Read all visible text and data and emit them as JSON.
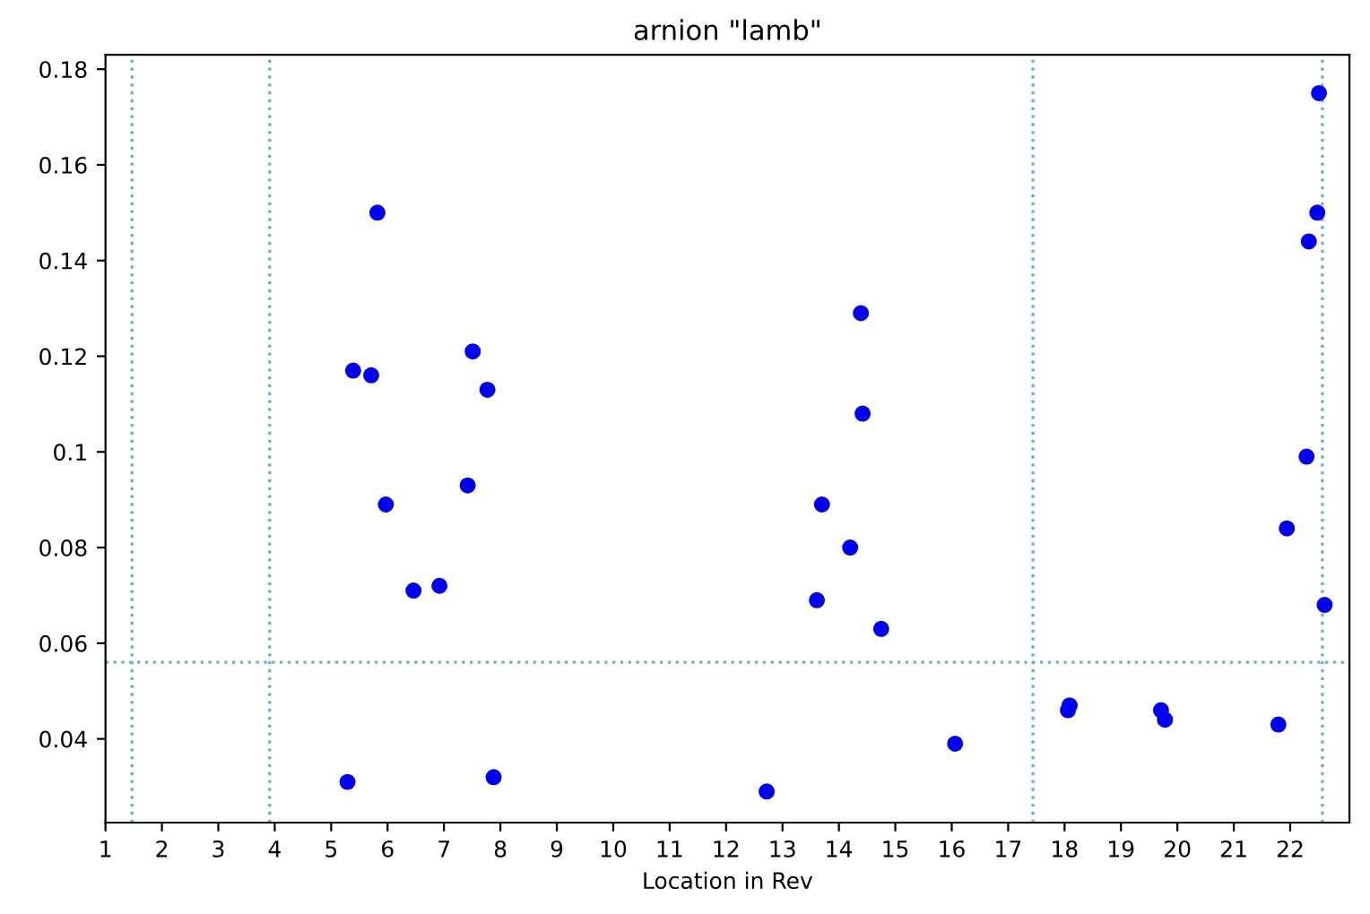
{
  "chart_data": {
    "type": "scatter",
    "title": "arnion \"lamb\"",
    "xlabel": "Location in Rev",
    "x": [
      5.82,
      5.39,
      5.71,
      5.97,
      6.46,
      6.92,
      7.51,
      7.77,
      7.42,
      5.29,
      7.88,
      14.39,
      14.42,
      13.7,
      14.2,
      13.61,
      14.75,
      16.06,
      12.72,
      18.09,
      18.06,
      19.71,
      19.78,
      21.79,
      22.51,
      22.48,
      22.33,
      22.29,
      21.94,
      22.61
    ],
    "series": [
      {
        "color": "#0000ee",
        "values": [
          0.15,
          0.117,
          0.116,
          0.089,
          0.071,
          0.072,
          0.121,
          0.113,
          0.093,
          0.031,
          0.032,
          0.129,
          0.108,
          0.089,
          0.08,
          0.069,
          0.063,
          0.039,
          0.029,
          0.047,
          0.046,
          0.046,
          0.044,
          0.043,
          0.175,
          0.15,
          0.144,
          0.099,
          0.084,
          0.068
        ]
      }
    ],
    "marker": "circle",
    "xlim": [
      1,
      23.05
    ],
    "ylim": [
      0.0225,
      0.183
    ],
    "xticks": [
      1,
      2,
      3,
      4,
      5,
      6,
      7,
      8,
      9,
      10,
      11,
      12,
      13,
      14,
      15,
      16,
      17,
      18,
      19,
      20,
      21,
      22
    ],
    "yticks": [
      0.04,
      0.06,
      0.08,
      0.1,
      0.12,
      0.14,
      0.16,
      0.18
    ],
    "ref_lines": [
      {
        "axis": "x",
        "value": 1.47,
        "color": "#6baed6",
        "line_style": "dotted"
      },
      {
        "axis": "x",
        "value": 3.91,
        "color": "#6baed6",
        "line_style": "dotted"
      },
      {
        "axis": "x",
        "value": 17.44,
        "color": "#6baed6",
        "line_style": "dotted"
      },
      {
        "axis": "x",
        "value": 22.57,
        "color": "#6baed6",
        "line_style": "dotted"
      },
      {
        "axis": "y",
        "value": 0.056,
        "color": "#6baed6",
        "line_style": "dotted"
      }
    ],
    "grid": false,
    "legend": false
  }
}
